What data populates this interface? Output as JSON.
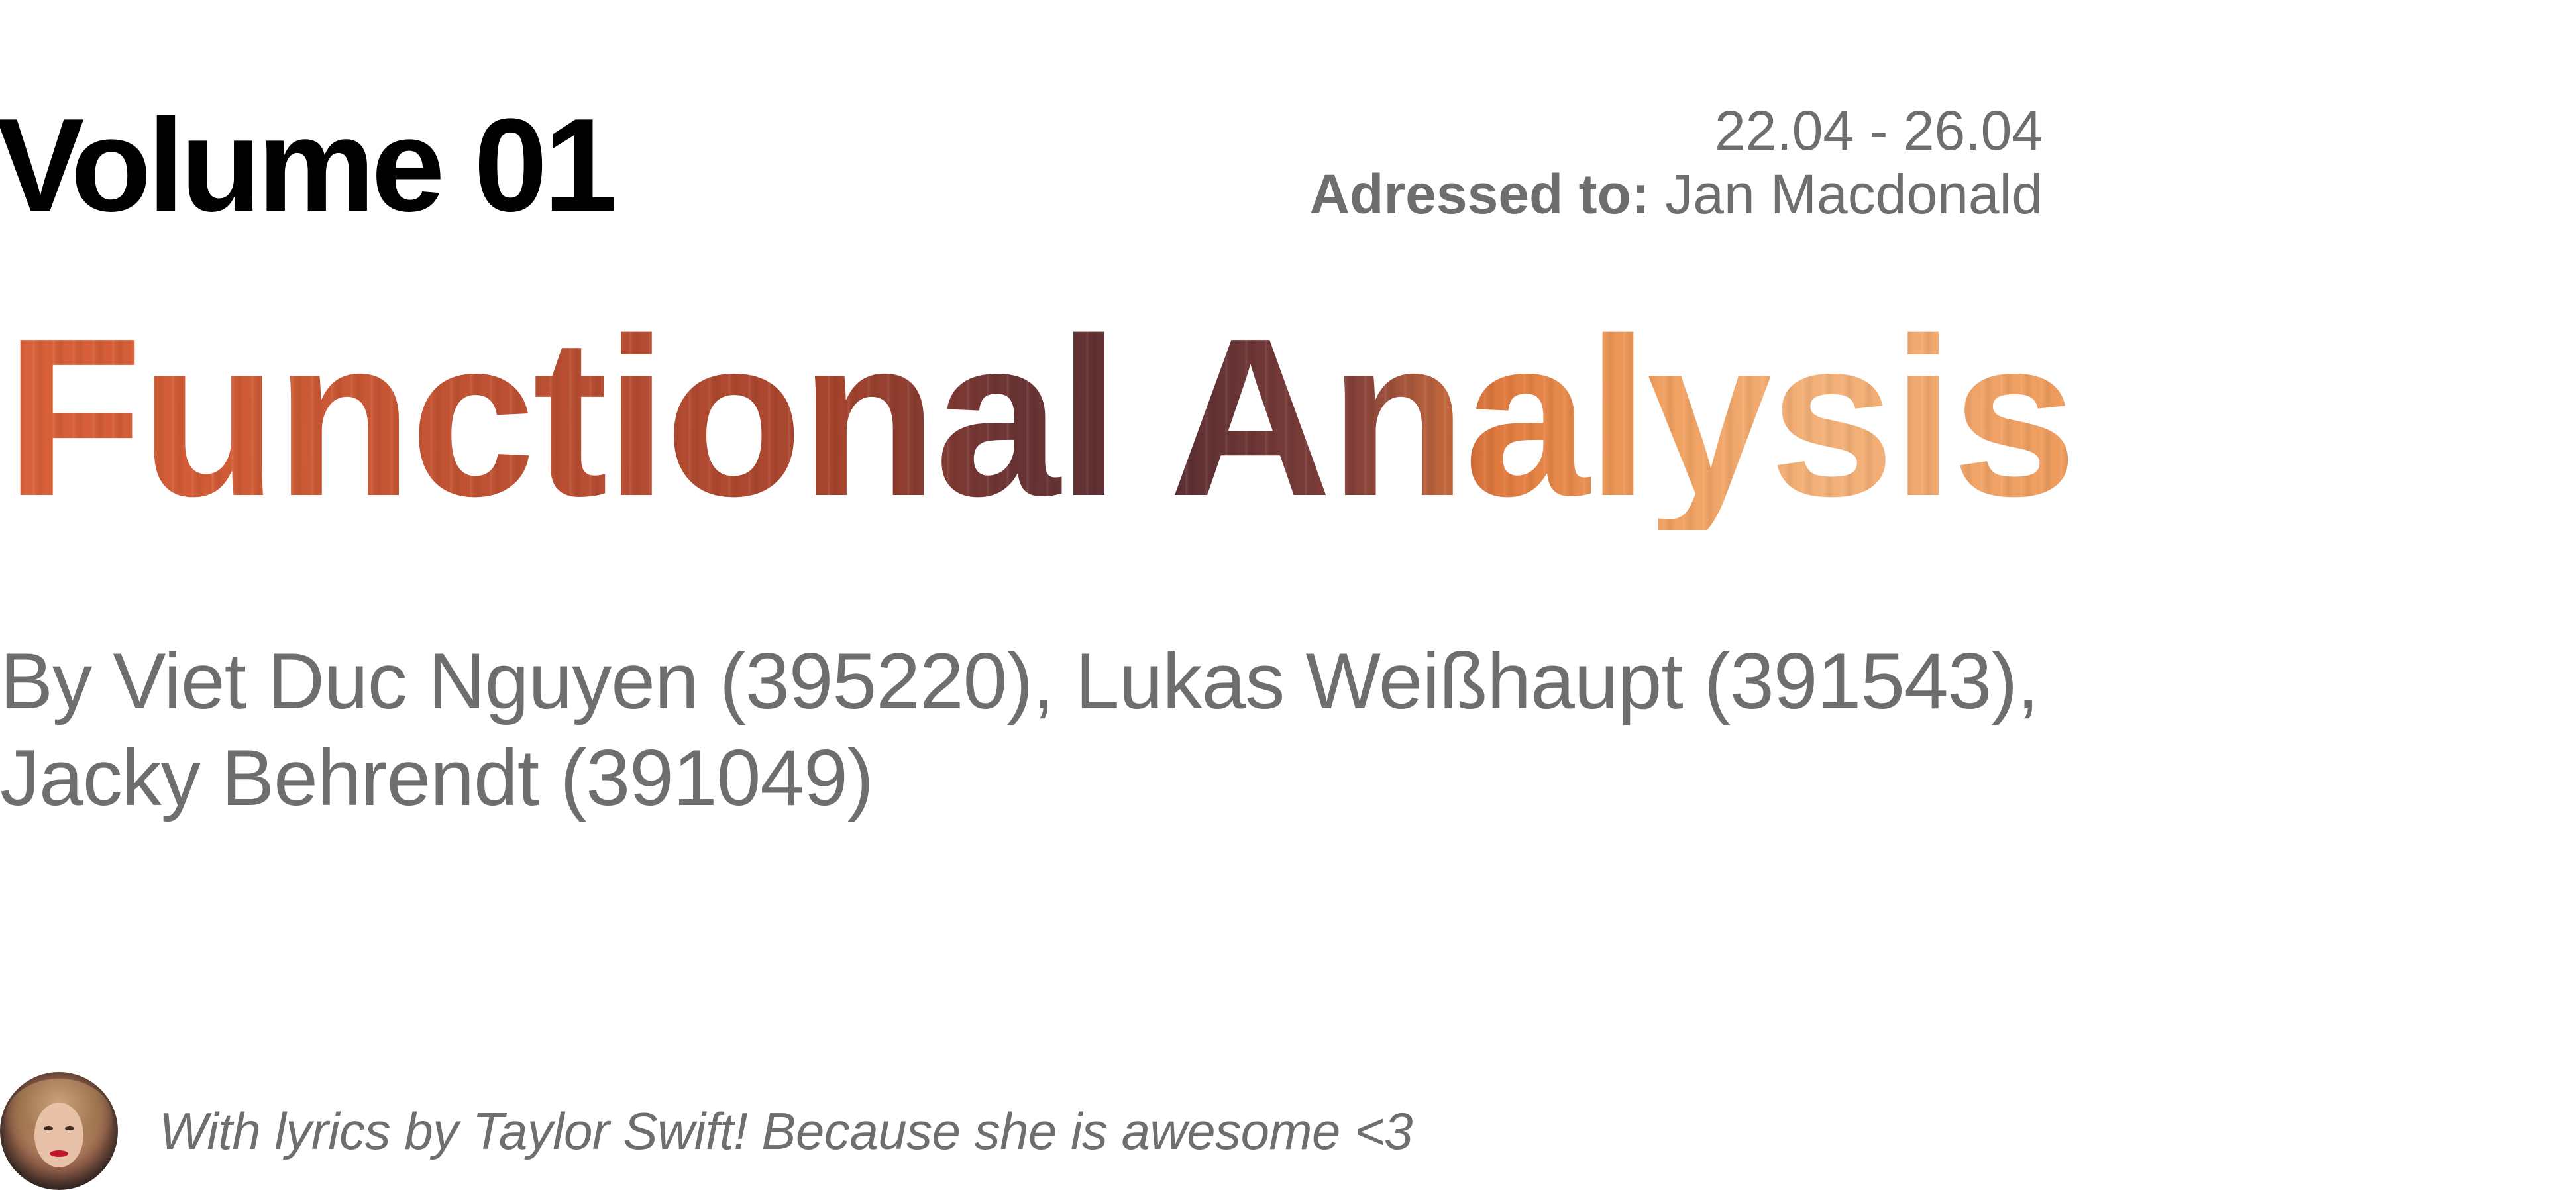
{
  "header": {
    "volume": "Volume 01",
    "date_range": "22.04 - 26.04",
    "addressed_label": "Adressed to:",
    "addressed_name": "Jan Macdonald"
  },
  "title": "Functional Analysis",
  "authors": "By Viet Duc Nguyen (395220), Lukas Weißhaupt (391543), Jacky Behrendt (391049)",
  "footer": {
    "text": "With lyrics by Taylor Swift! Because she is awesome <3"
  },
  "colors": {
    "title_gradient": [
      "#d9613a",
      "#a8452e",
      "#5a2f33",
      "#e07a3e",
      "#f3b27a"
    ],
    "muted_text": "#6e6e6e",
    "heading_text": "#000000"
  }
}
